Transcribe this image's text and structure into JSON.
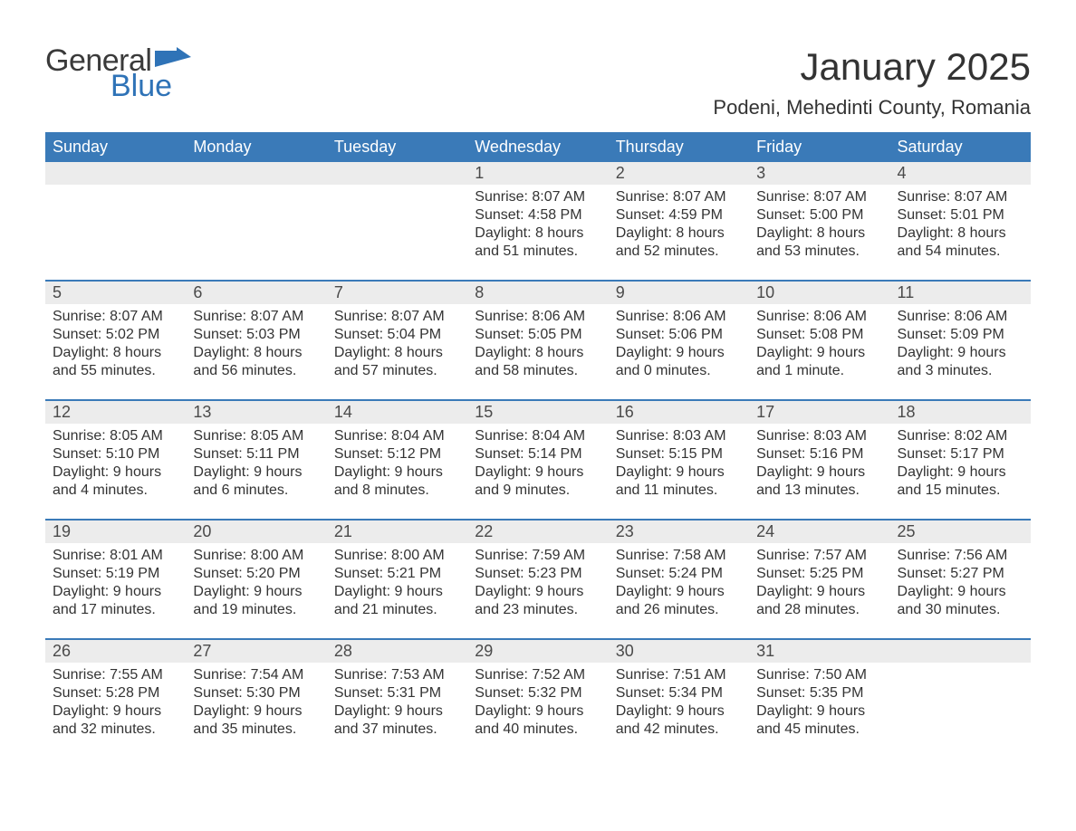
{
  "logo": {
    "text1": "General",
    "text2": "Blue",
    "accent_color": "#2f73b7"
  },
  "title": "January 2025",
  "location": "Podeni, Mehedinti County, Romania",
  "colors": {
    "header_bg": "#3a7ab8",
    "header_text": "#ffffff",
    "daynum_bg": "#ececec",
    "rule": "#3a7ab8",
    "body_text": "#333333"
  },
  "weekdays": [
    "Sunday",
    "Monday",
    "Tuesday",
    "Wednesday",
    "Thursday",
    "Friday",
    "Saturday"
  ],
  "weeks": [
    [
      null,
      null,
      null,
      {
        "n": "1",
        "sr": "Sunrise: 8:07 AM",
        "ss": "Sunset: 4:58 PM",
        "d1": "Daylight: 8 hours",
        "d2": "and 51 minutes."
      },
      {
        "n": "2",
        "sr": "Sunrise: 8:07 AM",
        "ss": "Sunset: 4:59 PM",
        "d1": "Daylight: 8 hours",
        "d2": "and 52 minutes."
      },
      {
        "n": "3",
        "sr": "Sunrise: 8:07 AM",
        "ss": "Sunset: 5:00 PM",
        "d1": "Daylight: 8 hours",
        "d2": "and 53 minutes."
      },
      {
        "n": "4",
        "sr": "Sunrise: 8:07 AM",
        "ss": "Sunset: 5:01 PM",
        "d1": "Daylight: 8 hours",
        "d2": "and 54 minutes."
      }
    ],
    [
      {
        "n": "5",
        "sr": "Sunrise: 8:07 AM",
        "ss": "Sunset: 5:02 PM",
        "d1": "Daylight: 8 hours",
        "d2": "and 55 minutes."
      },
      {
        "n": "6",
        "sr": "Sunrise: 8:07 AM",
        "ss": "Sunset: 5:03 PM",
        "d1": "Daylight: 8 hours",
        "d2": "and 56 minutes."
      },
      {
        "n": "7",
        "sr": "Sunrise: 8:07 AM",
        "ss": "Sunset: 5:04 PM",
        "d1": "Daylight: 8 hours",
        "d2": "and 57 minutes."
      },
      {
        "n": "8",
        "sr": "Sunrise: 8:06 AM",
        "ss": "Sunset: 5:05 PM",
        "d1": "Daylight: 8 hours",
        "d2": "and 58 minutes."
      },
      {
        "n": "9",
        "sr": "Sunrise: 8:06 AM",
        "ss": "Sunset: 5:06 PM",
        "d1": "Daylight: 9 hours",
        "d2": "and 0 minutes."
      },
      {
        "n": "10",
        "sr": "Sunrise: 8:06 AM",
        "ss": "Sunset: 5:08 PM",
        "d1": "Daylight: 9 hours",
        "d2": "and 1 minute."
      },
      {
        "n": "11",
        "sr": "Sunrise: 8:06 AM",
        "ss": "Sunset: 5:09 PM",
        "d1": "Daylight: 9 hours",
        "d2": "and 3 minutes."
      }
    ],
    [
      {
        "n": "12",
        "sr": "Sunrise: 8:05 AM",
        "ss": "Sunset: 5:10 PM",
        "d1": "Daylight: 9 hours",
        "d2": "and 4 minutes."
      },
      {
        "n": "13",
        "sr": "Sunrise: 8:05 AM",
        "ss": "Sunset: 5:11 PM",
        "d1": "Daylight: 9 hours",
        "d2": "and 6 minutes."
      },
      {
        "n": "14",
        "sr": "Sunrise: 8:04 AM",
        "ss": "Sunset: 5:12 PM",
        "d1": "Daylight: 9 hours",
        "d2": "and 8 minutes."
      },
      {
        "n": "15",
        "sr": "Sunrise: 8:04 AM",
        "ss": "Sunset: 5:14 PM",
        "d1": "Daylight: 9 hours",
        "d2": "and 9 minutes."
      },
      {
        "n": "16",
        "sr": "Sunrise: 8:03 AM",
        "ss": "Sunset: 5:15 PM",
        "d1": "Daylight: 9 hours",
        "d2": "and 11 minutes."
      },
      {
        "n": "17",
        "sr": "Sunrise: 8:03 AM",
        "ss": "Sunset: 5:16 PM",
        "d1": "Daylight: 9 hours",
        "d2": "and 13 minutes."
      },
      {
        "n": "18",
        "sr": "Sunrise: 8:02 AM",
        "ss": "Sunset: 5:17 PM",
        "d1": "Daylight: 9 hours",
        "d2": "and 15 minutes."
      }
    ],
    [
      {
        "n": "19",
        "sr": "Sunrise: 8:01 AM",
        "ss": "Sunset: 5:19 PM",
        "d1": "Daylight: 9 hours",
        "d2": "and 17 minutes."
      },
      {
        "n": "20",
        "sr": "Sunrise: 8:00 AM",
        "ss": "Sunset: 5:20 PM",
        "d1": "Daylight: 9 hours",
        "d2": "and 19 minutes."
      },
      {
        "n": "21",
        "sr": "Sunrise: 8:00 AM",
        "ss": "Sunset: 5:21 PM",
        "d1": "Daylight: 9 hours",
        "d2": "and 21 minutes."
      },
      {
        "n": "22",
        "sr": "Sunrise: 7:59 AM",
        "ss": "Sunset: 5:23 PM",
        "d1": "Daylight: 9 hours",
        "d2": "and 23 minutes."
      },
      {
        "n": "23",
        "sr": "Sunrise: 7:58 AM",
        "ss": "Sunset: 5:24 PM",
        "d1": "Daylight: 9 hours",
        "d2": "and 26 minutes."
      },
      {
        "n": "24",
        "sr": "Sunrise: 7:57 AM",
        "ss": "Sunset: 5:25 PM",
        "d1": "Daylight: 9 hours",
        "d2": "and 28 minutes."
      },
      {
        "n": "25",
        "sr": "Sunrise: 7:56 AM",
        "ss": "Sunset: 5:27 PM",
        "d1": "Daylight: 9 hours",
        "d2": "and 30 minutes."
      }
    ],
    [
      {
        "n": "26",
        "sr": "Sunrise: 7:55 AM",
        "ss": "Sunset: 5:28 PM",
        "d1": "Daylight: 9 hours",
        "d2": "and 32 minutes."
      },
      {
        "n": "27",
        "sr": "Sunrise: 7:54 AM",
        "ss": "Sunset: 5:30 PM",
        "d1": "Daylight: 9 hours",
        "d2": "and 35 minutes."
      },
      {
        "n": "28",
        "sr": "Sunrise: 7:53 AM",
        "ss": "Sunset: 5:31 PM",
        "d1": "Daylight: 9 hours",
        "d2": "and 37 minutes."
      },
      {
        "n": "29",
        "sr": "Sunrise: 7:52 AM",
        "ss": "Sunset: 5:32 PM",
        "d1": "Daylight: 9 hours",
        "d2": "and 40 minutes."
      },
      {
        "n": "30",
        "sr": "Sunrise: 7:51 AM",
        "ss": "Sunset: 5:34 PM",
        "d1": "Daylight: 9 hours",
        "d2": "and 42 minutes."
      },
      {
        "n": "31",
        "sr": "Sunrise: 7:50 AM",
        "ss": "Sunset: 5:35 PM",
        "d1": "Daylight: 9 hours",
        "d2": "and 45 minutes."
      },
      null
    ]
  ]
}
